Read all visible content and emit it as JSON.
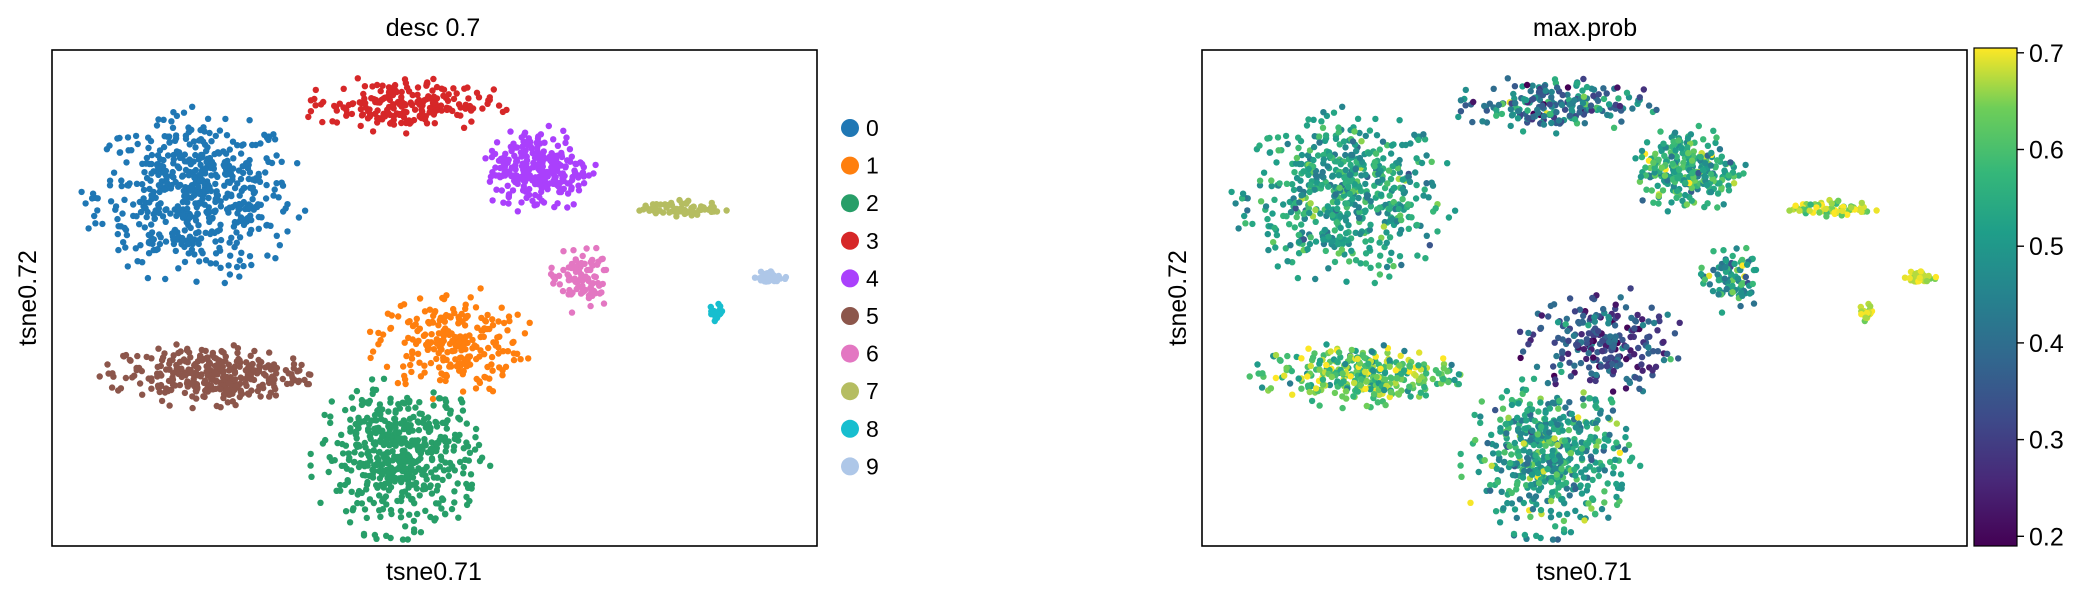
{
  "figure": {
    "panels": [
      {
        "title": "desc 0.7",
        "xlabel": "tsne0.71",
        "ylabel": "tsne0.72"
      },
      {
        "title": "max.prob",
        "xlabel": "tsne0.71",
        "ylabel": "tsne0.72"
      }
    ]
  },
  "chart_data": [
    {
      "type": "scatter",
      "title": "desc 0.7",
      "xlabel": "tsne0.71",
      "ylabel": "tsne0.72",
      "xlim": [
        0,
        100
      ],
      "ylim": [
        0,
        100
      ],
      "grid": false,
      "ticks_visible": false,
      "legend": "right",
      "legend_entries": [
        "0",
        "1",
        "2",
        "3",
        "4",
        "5",
        "6",
        "7",
        "8",
        "9"
      ],
      "colors": [
        "#1f77b4",
        "#ff7f0e",
        "#279e68",
        "#d62728",
        "#aa40fc",
        "#8c564b",
        "#e377c2",
        "#b5bd61",
        "#17becf",
        "#aec7e8"
      ],
      "clusters": [
        {
          "name": "0",
          "x": 18.7,
          "y": 70.7,
          "sx": 6.4,
          "sy": 7.9,
          "n": 560
        },
        {
          "name": "1",
          "x": 52.0,
          "y": 41.0,
          "sx": 4.8,
          "sy": 5.1,
          "n": 240
        },
        {
          "name": "2",
          "x": 45.5,
          "y": 17.6,
          "sx": 5.2,
          "sy": 7.3,
          "n": 500
        },
        {
          "name": "3",
          "x": 45.5,
          "y": 89.0,
          "sx": 6.2,
          "sy": 2.5,
          "n": 210
        },
        {
          "name": "4",
          "x": 63.5,
          "y": 76.0,
          "sx": 3.4,
          "sy": 4.1,
          "n": 260
        },
        {
          "name": "5",
          "x": 20.5,
          "y": 34.5,
          "sx": 6.3,
          "sy": 2.9,
          "n": 320
        },
        {
          "name": "6",
          "x": 69.0,
          "y": 54.0,
          "sx": 2.0,
          "sy": 3.1,
          "n": 90
        },
        {
          "name": "7",
          "x": 82.5,
          "y": 68.0,
          "sx": 2.6,
          "sy": 0.8,
          "n": 70
        },
        {
          "name": "8",
          "x": 86.8,
          "y": 47.0,
          "sx": 0.5,
          "sy": 0.8,
          "n": 25
        },
        {
          "name": "9",
          "x": 94.0,
          "y": 54.2,
          "sx": 1.1,
          "sy": 0.6,
          "n": 30
        }
      ]
    },
    {
      "type": "scatter",
      "title": "max.prob",
      "xlabel": "tsne0.71",
      "ylabel": "tsne0.72",
      "xlim": [
        0,
        100
      ],
      "ylim": [
        0,
        100
      ],
      "grid": false,
      "ticks_visible": false,
      "colormap": "viridis",
      "colorbar": {
        "min": 0.19,
        "max": 0.705,
        "ticks": [
          "0.2",
          "0.3",
          "0.4",
          "0.5",
          "0.6",
          "0.7"
        ]
      },
      "cluster_max_prob": [
        {
          "name": "0",
          "value": 0.52,
          "spread": 0.06
        },
        {
          "name": "1",
          "value": 0.34,
          "spread": 0.08
        },
        {
          "name": "2",
          "value": 0.52,
          "spread": 0.07
        },
        {
          "name": "3",
          "value": 0.42,
          "spread": 0.1
        },
        {
          "name": "4",
          "value": 0.55,
          "spread": 0.07
        },
        {
          "name": "5",
          "value": 0.6,
          "spread": 0.07
        },
        {
          "name": "6",
          "value": 0.5,
          "spread": 0.08
        },
        {
          "name": "7",
          "value": 0.66,
          "spread": 0.04
        },
        {
          "name": "8",
          "value": 0.68,
          "spread": 0.02
        },
        {
          "name": "9",
          "value": 0.68,
          "spread": 0.02
        }
      ]
    }
  ]
}
